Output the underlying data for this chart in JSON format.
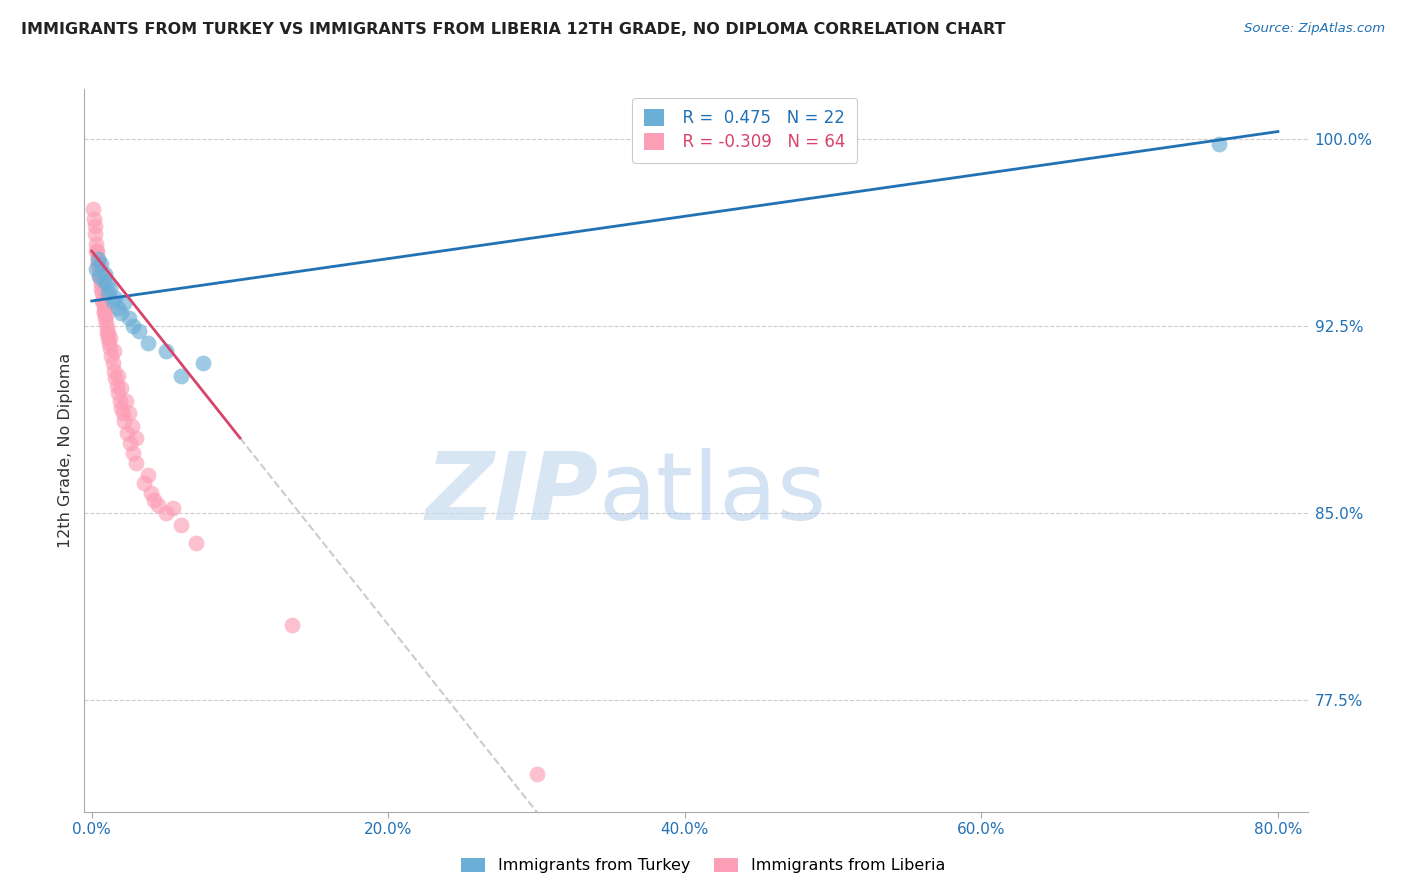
{
  "title": "IMMIGRANTS FROM TURKEY VS IMMIGRANTS FROM LIBERIA 12TH GRADE, NO DIPLOMA CORRELATION CHART",
  "source": "Source: ZipAtlas.com",
  "xlabel_ticks": [
    "0.0%",
    "20.0%",
    "40.0%",
    "60.0%",
    "80.0%"
  ],
  "xlabel_vals": [
    0.0,
    20.0,
    40.0,
    60.0,
    80.0
  ],
  "ylabel": "12th Grade, No Diploma",
  "ytick_vals": [
    77.5,
    85.0,
    92.5,
    100.0
  ],
  "ytick_labels": [
    "77.5%",
    "85.0%",
    "92.5%",
    "100.0%"
  ],
  "ylim": [
    73.0,
    102.0
  ],
  "xlim": [
    -0.5,
    82.0
  ],
  "turkey_x": [
    0.3,
    0.4,
    0.5,
    0.6,
    0.8,
    0.9,
    1.0,
    1.1,
    1.2,
    1.4,
    1.6,
    1.8,
    2.0,
    2.2,
    2.5,
    2.8,
    3.2,
    3.8,
    5.0,
    6.0,
    7.5,
    76.0
  ],
  "turkey_y": [
    94.8,
    95.2,
    94.5,
    95.0,
    94.3,
    94.6,
    94.2,
    93.8,
    94.0,
    93.5,
    93.6,
    93.2,
    93.0,
    93.4,
    92.8,
    92.5,
    92.3,
    91.8,
    91.5,
    90.5,
    91.0,
    99.8
  ],
  "liberia_x": [
    0.1,
    0.15,
    0.2,
    0.25,
    0.3,
    0.35,
    0.4,
    0.45,
    0.5,
    0.55,
    0.6,
    0.65,
    0.7,
    0.75,
    0.8,
    0.85,
    0.9,
    0.95,
    1.0,
    1.05,
    1.1,
    1.15,
    1.2,
    1.3,
    1.4,
    1.5,
    1.6,
    1.7,
    1.8,
    1.9,
    2.0,
    2.1,
    2.2,
    2.4,
    2.6,
    2.8,
    3.0,
    3.5,
    4.0,
    4.5,
    5.0,
    6.0,
    7.0,
    1.0,
    1.5,
    2.0,
    2.5,
    3.0,
    3.8,
    5.5,
    0.3,
    0.5,
    0.7,
    1.2,
    1.8,
    2.3,
    0.4,
    0.6,
    0.8,
    1.1,
    2.7,
    4.2,
    13.5,
    30.0
  ],
  "liberia_y": [
    97.2,
    96.8,
    96.5,
    96.2,
    95.8,
    95.5,
    95.2,
    95.0,
    94.8,
    94.5,
    94.3,
    94.0,
    93.8,
    93.5,
    93.3,
    93.1,
    92.8,
    92.6,
    92.4,
    92.2,
    92.0,
    91.8,
    91.6,
    91.3,
    91.0,
    90.7,
    90.4,
    90.1,
    89.8,
    89.5,
    89.2,
    89.0,
    88.7,
    88.2,
    87.8,
    87.4,
    87.0,
    86.2,
    85.8,
    85.3,
    85.0,
    84.5,
    83.8,
    93.0,
    91.5,
    90.0,
    89.0,
    88.0,
    86.5,
    85.2,
    95.5,
    94.5,
    93.5,
    92.0,
    90.5,
    89.5,
    95.0,
    94.2,
    93.0,
    92.2,
    88.5,
    85.5,
    80.5,
    74.5
  ],
  "turkey_color": "#6BAED6",
  "liberia_color": "#FC9EB5",
  "turkey_line_color": "#2171B5",
  "liberia_line_color": "#D6446B",
  "dashed_line_color": "#CCCCCC",
  "legend_line1": "R =  0.475   N = 22",
  "legend_line2": "R = -0.309   N = 64",
  "watermark_zip": "ZIP",
  "watermark_atlas": "atlas",
  "background_color": "#FFFFFF",
  "grid_color": "#CCCCCC",
  "turkey_line_intercept": 93.5,
  "turkey_line_slope": 0.085,
  "liberia_line_intercept": 95.5,
  "liberia_line_slope": -0.75
}
